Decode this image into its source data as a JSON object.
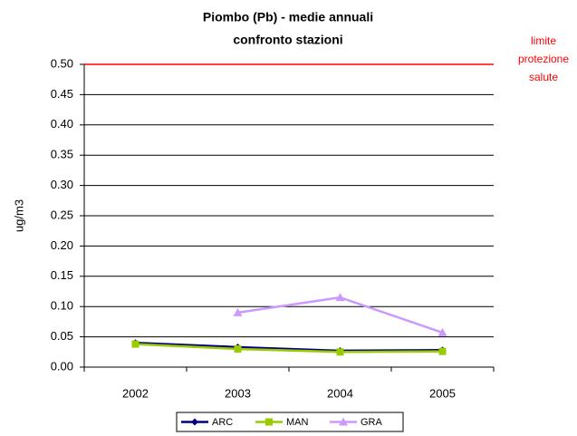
{
  "chart_data": {
    "type": "line",
    "title": [
      "Piombo (Pb) - medie annuali",
      "confronto stazioni"
    ],
    "y_label": "ug/m3",
    "categories": [
      "2002",
      "2003",
      "2004",
      "2005"
    ],
    "series": [
      {
        "name": "ARC",
        "color": "#000080",
        "marker": "diamond",
        "values": [
          0.04,
          0.033,
          0.027,
          0.028
        ]
      },
      {
        "name": "MAN",
        "color": "#99cc00",
        "marker": "square",
        "values": [
          0.038,
          0.03,
          0.025,
          0.026
        ]
      },
      {
        "name": "GRA",
        "color": "#cc99ff",
        "marker": "triangle",
        "values": [
          null,
          0.09,
          0.115,
          0.057
        ]
      }
    ],
    "limit": {
      "value": 0.5,
      "color": "#ff0000",
      "label": [
        "limite",
        "protezione",
        "salute"
      ]
    },
    "ylim": [
      0,
      0.5
    ],
    "yticks": [
      {
        "value": 0,
        "label": "0.00"
      },
      {
        "value": 0.05,
        "label": "0.05"
      },
      {
        "value": 0.1,
        "label": "0.10"
      },
      {
        "value": 0.15,
        "label": "0.15"
      },
      {
        "value": 0.2,
        "label": "0.20"
      },
      {
        "value": 0.25,
        "label": "0.25"
      },
      {
        "value": 0.3,
        "label": "0.30"
      },
      {
        "value": 0.35,
        "label": "0.35"
      },
      {
        "value": 0.4,
        "label": "0.40"
      },
      {
        "value": 0.45,
        "label": "0.45"
      },
      {
        "value": 0.5,
        "label": "0.50"
      }
    ],
    "grid": true,
    "legend": "bottom"
  }
}
